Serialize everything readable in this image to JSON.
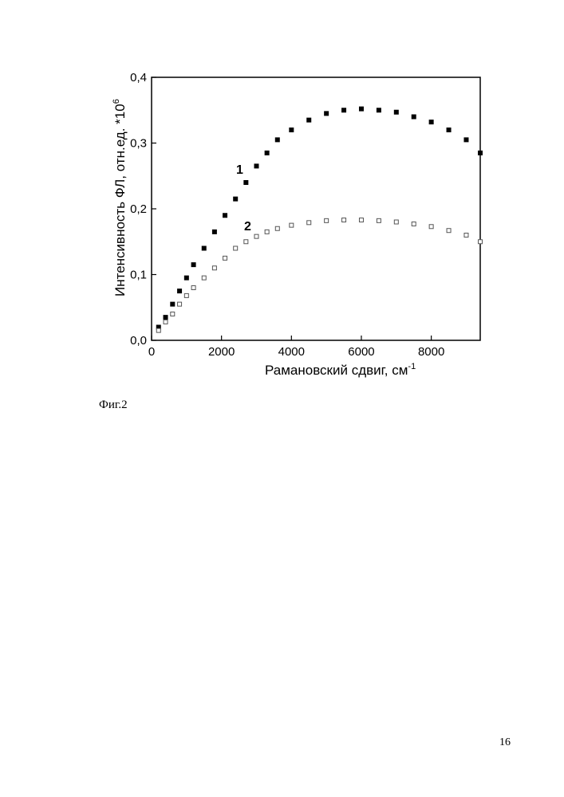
{
  "figure_caption": "Фиг.2",
  "page_number": "16",
  "chart_data": {
    "type": "scatter",
    "title": "",
    "xlabel": "Рамановский сдвиг, см",
    "xlabel_sup": "-1",
    "ylabel": "Интенсивность ФЛ, отн.ед. *10",
    "ylabel_sup": "6",
    "xlim": [
      0,
      9400
    ],
    "ylim": [
      0,
      0.4
    ],
    "x_ticks": [
      0,
      2000,
      4000,
      6000,
      8000
    ],
    "x_tick_labels": [
      "0",
      "2000",
      "4000",
      "6000",
      "8000"
    ],
    "y_ticks": [
      0,
      0.1,
      0.2,
      0.3,
      0.4
    ],
    "y_tick_labels": [
      "0,0",
      "0,1",
      "0,2",
      "0,3",
      "0,4"
    ],
    "grid": false,
    "series": [
      {
        "name": "1",
        "marker": "filled-square",
        "color": "#000000",
        "x": [
          200,
          400,
          600,
          800,
          1000,
          1200,
          1500,
          1800,
          2100,
          2400,
          2700,
          3000,
          3300,
          3600,
          4000,
          4500,
          5000,
          5500,
          6000,
          6500,
          7000,
          7500,
          8000,
          8500,
          9000,
          9400
        ],
        "y": [
          0.02,
          0.035,
          0.055,
          0.075,
          0.095,
          0.115,
          0.14,
          0.165,
          0.19,
          0.215,
          0.24,
          0.265,
          0.285,
          0.305,
          0.32,
          0.335,
          0.345,
          0.35,
          0.352,
          0.35,
          0.347,
          0.34,
          0.332,
          0.32,
          0.305,
          0.285
        ]
      },
      {
        "name": "2",
        "marker": "open-square",
        "color": "#555555",
        "x": [
          200,
          400,
          600,
          800,
          1000,
          1200,
          1500,
          1800,
          2100,
          2400,
          2700,
          3000,
          3300,
          3600,
          4000,
          4500,
          5000,
          5500,
          6000,
          6500,
          7000,
          7500,
          8000,
          8500,
          9000,
          9400
        ],
        "y": [
          0.015,
          0.028,
          0.04,
          0.055,
          0.068,
          0.08,
          0.095,
          0.11,
          0.125,
          0.14,
          0.15,
          0.158,
          0.165,
          0.17,
          0.175,
          0.179,
          0.182,
          0.183,
          0.183,
          0.182,
          0.18,
          0.177,
          0.173,
          0.167,
          0.16,
          0.15
        ]
      }
    ]
  }
}
